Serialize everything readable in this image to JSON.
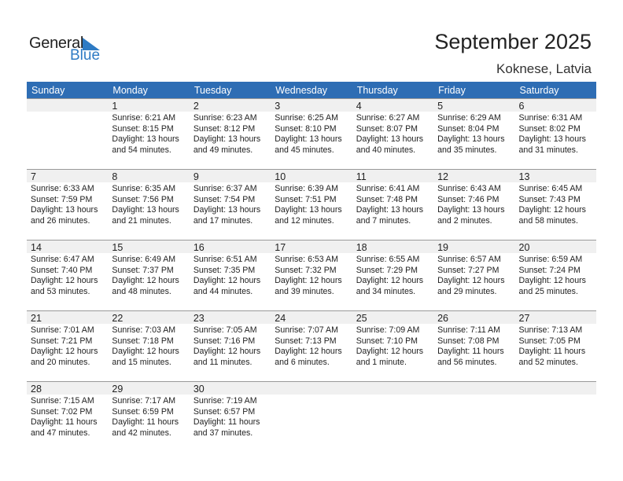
{
  "logo": {
    "text1": "General",
    "text2": "Blue"
  },
  "title": "September 2025",
  "location": "Koknese, Latvia",
  "colors": {
    "header": "#2E6DB4",
    "day_band": "#F0F0F0",
    "logo_blue": "#2E7BC4"
  },
  "weekdays": [
    "Sunday",
    "Monday",
    "Tuesday",
    "Wednesday",
    "Thursday",
    "Friday",
    "Saturday"
  ],
  "weeks": [
    [
      null,
      {
        "day": "1",
        "sunrise": "Sunrise: 6:21 AM",
        "sunset": "Sunset: 8:15 PM",
        "daylight": "Daylight: 13 hours",
        "minutes": "and 54 minutes."
      },
      {
        "day": "2",
        "sunrise": "Sunrise: 6:23 AM",
        "sunset": "Sunset: 8:12 PM",
        "daylight": "Daylight: 13 hours",
        "minutes": "and 49 minutes."
      },
      {
        "day": "3",
        "sunrise": "Sunrise: 6:25 AM",
        "sunset": "Sunset: 8:10 PM",
        "daylight": "Daylight: 13 hours",
        "minutes": "and 45 minutes."
      },
      {
        "day": "4",
        "sunrise": "Sunrise: 6:27 AM",
        "sunset": "Sunset: 8:07 PM",
        "daylight": "Daylight: 13 hours",
        "minutes": "and 40 minutes."
      },
      {
        "day": "5",
        "sunrise": "Sunrise: 6:29 AM",
        "sunset": "Sunset: 8:04 PM",
        "daylight": "Daylight: 13 hours",
        "minutes": "and 35 minutes."
      },
      {
        "day": "6",
        "sunrise": "Sunrise: 6:31 AM",
        "sunset": "Sunset: 8:02 PM",
        "daylight": "Daylight: 13 hours",
        "minutes": "and 31 minutes."
      }
    ],
    [
      {
        "day": "7",
        "sunrise": "Sunrise: 6:33 AM",
        "sunset": "Sunset: 7:59 PM",
        "daylight": "Daylight: 13 hours",
        "minutes": "and 26 minutes."
      },
      {
        "day": "8",
        "sunrise": "Sunrise: 6:35 AM",
        "sunset": "Sunset: 7:56 PM",
        "daylight": "Daylight: 13 hours",
        "minutes": "and 21 minutes."
      },
      {
        "day": "9",
        "sunrise": "Sunrise: 6:37 AM",
        "sunset": "Sunset: 7:54 PM",
        "daylight": "Daylight: 13 hours",
        "minutes": "and 17 minutes."
      },
      {
        "day": "10",
        "sunrise": "Sunrise: 6:39 AM",
        "sunset": "Sunset: 7:51 PM",
        "daylight": "Daylight: 13 hours",
        "minutes": "and 12 minutes."
      },
      {
        "day": "11",
        "sunrise": "Sunrise: 6:41 AM",
        "sunset": "Sunset: 7:48 PM",
        "daylight": "Daylight: 13 hours",
        "minutes": "and 7 minutes."
      },
      {
        "day": "12",
        "sunrise": "Sunrise: 6:43 AM",
        "sunset": "Sunset: 7:46 PM",
        "daylight": "Daylight: 13 hours",
        "minutes": "and 2 minutes."
      },
      {
        "day": "13",
        "sunrise": "Sunrise: 6:45 AM",
        "sunset": "Sunset: 7:43 PM",
        "daylight": "Daylight: 12 hours",
        "minutes": "and 58 minutes."
      }
    ],
    [
      {
        "day": "14",
        "sunrise": "Sunrise: 6:47 AM",
        "sunset": "Sunset: 7:40 PM",
        "daylight": "Daylight: 12 hours",
        "minutes": "and 53 minutes."
      },
      {
        "day": "15",
        "sunrise": "Sunrise: 6:49 AM",
        "sunset": "Sunset: 7:37 PM",
        "daylight": "Daylight: 12 hours",
        "minutes": "and 48 minutes."
      },
      {
        "day": "16",
        "sunrise": "Sunrise: 6:51 AM",
        "sunset": "Sunset: 7:35 PM",
        "daylight": "Daylight: 12 hours",
        "minutes": "and 44 minutes."
      },
      {
        "day": "17",
        "sunrise": "Sunrise: 6:53 AM",
        "sunset": "Sunset: 7:32 PM",
        "daylight": "Daylight: 12 hours",
        "minutes": "and 39 minutes."
      },
      {
        "day": "18",
        "sunrise": "Sunrise: 6:55 AM",
        "sunset": "Sunset: 7:29 PM",
        "daylight": "Daylight: 12 hours",
        "minutes": "and 34 minutes."
      },
      {
        "day": "19",
        "sunrise": "Sunrise: 6:57 AM",
        "sunset": "Sunset: 7:27 PM",
        "daylight": "Daylight: 12 hours",
        "minutes": "and 29 minutes."
      },
      {
        "day": "20",
        "sunrise": "Sunrise: 6:59 AM",
        "sunset": "Sunset: 7:24 PM",
        "daylight": "Daylight: 12 hours",
        "minutes": "and 25 minutes."
      }
    ],
    [
      {
        "day": "21",
        "sunrise": "Sunrise: 7:01 AM",
        "sunset": "Sunset: 7:21 PM",
        "daylight": "Daylight: 12 hours",
        "minutes": "and 20 minutes."
      },
      {
        "day": "22",
        "sunrise": "Sunrise: 7:03 AM",
        "sunset": "Sunset: 7:18 PM",
        "daylight": "Daylight: 12 hours",
        "minutes": "and 15 minutes."
      },
      {
        "day": "23",
        "sunrise": "Sunrise: 7:05 AM",
        "sunset": "Sunset: 7:16 PM",
        "daylight": "Daylight: 12 hours",
        "minutes": "and 11 minutes."
      },
      {
        "day": "24",
        "sunrise": "Sunrise: 7:07 AM",
        "sunset": "Sunset: 7:13 PM",
        "daylight": "Daylight: 12 hours",
        "minutes": "and 6 minutes."
      },
      {
        "day": "25",
        "sunrise": "Sunrise: 7:09 AM",
        "sunset": "Sunset: 7:10 PM",
        "daylight": "Daylight: 12 hours",
        "minutes": "and 1 minute."
      },
      {
        "day": "26",
        "sunrise": "Sunrise: 7:11 AM",
        "sunset": "Sunset: 7:08 PM",
        "daylight": "Daylight: 11 hours",
        "minutes": "and 56 minutes."
      },
      {
        "day": "27",
        "sunrise": "Sunrise: 7:13 AM",
        "sunset": "Sunset: 7:05 PM",
        "daylight": "Daylight: 11 hours",
        "minutes": "and 52 minutes."
      }
    ],
    [
      {
        "day": "28",
        "sunrise": "Sunrise: 7:15 AM",
        "sunset": "Sunset: 7:02 PM",
        "daylight": "Daylight: 11 hours",
        "minutes": "and 47 minutes."
      },
      {
        "day": "29",
        "sunrise": "Sunrise: 7:17 AM",
        "sunset": "Sunset: 6:59 PM",
        "daylight": "Daylight: 11 hours",
        "minutes": "and 42 minutes."
      },
      {
        "day": "30",
        "sunrise": "Sunrise: 7:19 AM",
        "sunset": "Sunset: 6:57 PM",
        "daylight": "Daylight: 11 hours",
        "minutes": "and 37 minutes."
      },
      null,
      null,
      null,
      null
    ]
  ]
}
